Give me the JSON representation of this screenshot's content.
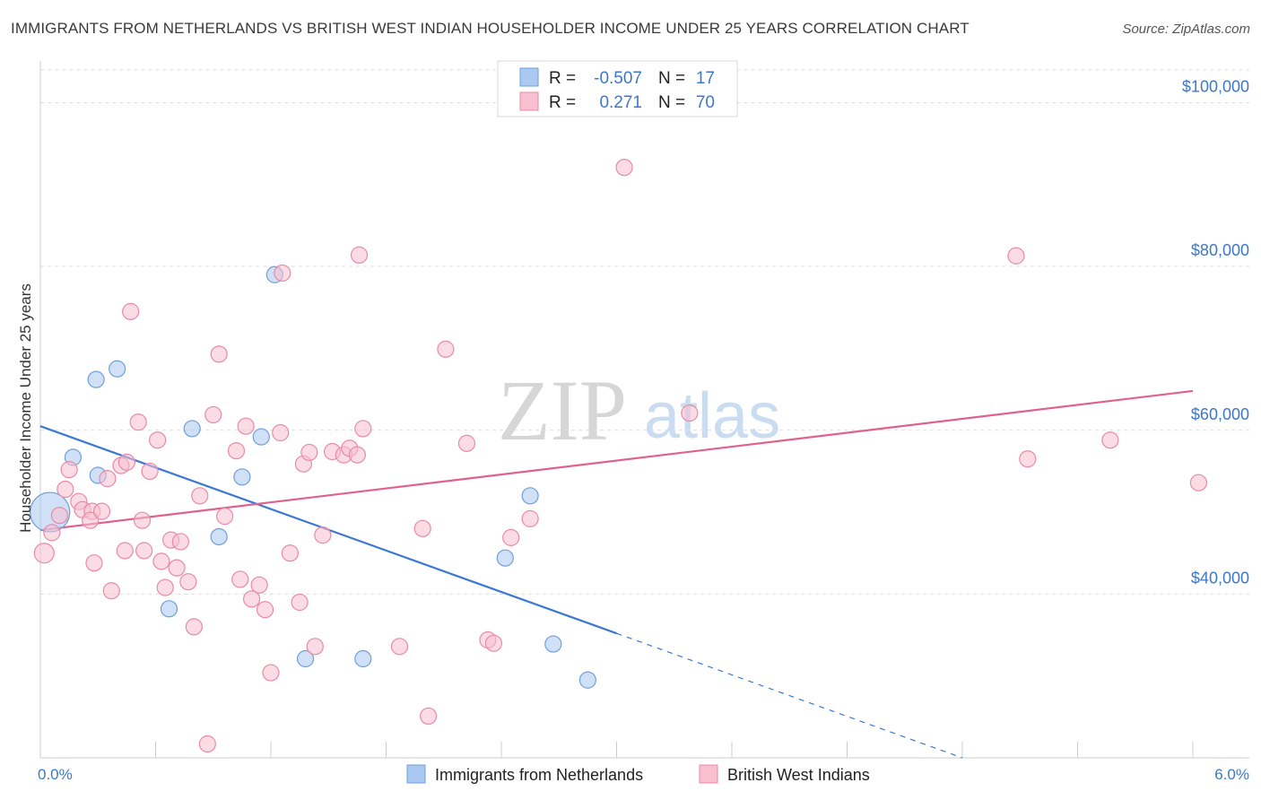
{
  "title": "IMMIGRANTS FROM NETHERLANDS VS BRITISH WEST INDIAN HOUSEHOLDER INCOME UNDER 25 YEARS CORRELATION CHART",
  "source": "Source: ZipAtlas.com",
  "watermark": {
    "zip": "ZIP",
    "atlas": "atlas"
  },
  "legend": {
    "r_label": "R =",
    "n_label": "N =",
    "rows": [
      {
        "r": "-0.507",
        "n": "17"
      },
      {
        "r": "0.271",
        "n": "70"
      }
    ]
  },
  "chart_data": {
    "type": "scatter",
    "title": "IMMIGRANTS FROM NETHERLANDS VS BRITISH WEST INDIAN HOUSEHOLDER INCOME UNDER 25 YEARS CORRELATION CHART",
    "xlabel": "",
    "ylabel": "Householder Income Under 25 years",
    "xlim": [
      0,
      6
    ],
    "ylim": [
      20000,
      104000
    ],
    "x_tick_labels": [
      "0.0%",
      "6.0%"
    ],
    "y_ticks": [
      40000,
      60000,
      80000,
      100000
    ],
    "y_tick_labels": [
      "$40,000",
      "$60,000",
      "$80,000",
      "$100,000"
    ],
    "series": [
      {
        "name": "Immigrants from Netherlands",
        "color": "#aac8f0",
        "stroke": "#6f9fd9",
        "line_color": "#3b78d4",
        "trend": {
          "x0": 0.0,
          "y0": 60500,
          "x1": 3.0,
          "y1": 35200,
          "dash_to_x": 4.8,
          "dash_to_y": 20000
        },
        "points": [
          [
            0.05,
            50000
          ],
          [
            0.17,
            56700
          ],
          [
            0.29,
            66200
          ],
          [
            0.4,
            67500
          ],
          [
            0.3,
            54500
          ],
          [
            0.79,
            60200
          ],
          [
            1.22,
            79000
          ],
          [
            1.15,
            59200
          ],
          [
            1.05,
            54300
          ],
          [
            0.93,
            47000
          ],
          [
            0.67,
            38200
          ],
          [
            1.38,
            32100
          ],
          [
            1.68,
            32100
          ],
          [
            2.42,
            44400
          ],
          [
            2.55,
            52000
          ],
          [
            2.67,
            33900
          ],
          [
            2.85,
            29500
          ]
        ],
        "sizes": [
          22,
          9,
          9,
          9,
          9,
          9,
          9,
          9,
          9,
          9,
          9,
          9,
          9,
          9,
          9,
          9,
          9
        ]
      },
      {
        "name": "British West Indians",
        "color": "#f7bfd0",
        "stroke": "#e88aa6",
        "line_color": "#e0628c",
        "trend": {
          "x0": 0.0,
          "y0": 47800,
          "x1": 6.0,
          "y1": 64800
        },
        "points": [
          [
            0.02,
            45000
          ],
          [
            0.06,
            47500
          ],
          [
            0.1,
            49600
          ],
          [
            0.13,
            52800
          ],
          [
            0.15,
            55200
          ],
          [
            0.2,
            51300
          ],
          [
            0.22,
            50300
          ],
          [
            0.27,
            50100
          ],
          [
            0.26,
            49000
          ],
          [
            0.32,
            50100
          ],
          [
            0.35,
            54100
          ],
          [
            0.28,
            43800
          ],
          [
            0.37,
            40400
          ],
          [
            0.42,
            55700
          ],
          [
            0.44,
            45300
          ],
          [
            0.45,
            56100
          ],
          [
            0.47,
            74500
          ],
          [
            0.51,
            61000
          ],
          [
            0.53,
            49000
          ],
          [
            0.54,
            45300
          ],
          [
            0.57,
            55000
          ],
          [
            0.61,
            58800
          ],
          [
            0.63,
            44000
          ],
          [
            0.65,
            40800
          ],
          [
            0.68,
            46600
          ],
          [
            0.71,
            43200
          ],
          [
            0.73,
            46400
          ],
          [
            0.77,
            41500
          ],
          [
            0.8,
            36000
          ],
          [
            0.83,
            52000
          ],
          [
            0.87,
            21700
          ],
          [
            0.9,
            61900
          ],
          [
            0.93,
            69300
          ],
          [
            0.96,
            49500
          ],
          [
            1.02,
            57500
          ],
          [
            1.04,
            41800
          ],
          [
            1.07,
            60500
          ],
          [
            1.1,
            39400
          ],
          [
            1.14,
            41100
          ],
          [
            1.17,
            38100
          ],
          [
            1.2,
            30400
          ],
          [
            1.25,
            59700
          ],
          [
            1.26,
            79200
          ],
          [
            1.3,
            45000
          ],
          [
            1.35,
            39000
          ],
          [
            1.37,
            55900
          ],
          [
            1.4,
            57300
          ],
          [
            1.43,
            33600
          ],
          [
            1.47,
            47200
          ],
          [
            1.52,
            57400
          ],
          [
            1.58,
            57000
          ],
          [
            1.61,
            57800
          ],
          [
            1.65,
            57000
          ],
          [
            1.66,
            81400
          ],
          [
            1.68,
            60200
          ],
          [
            1.87,
            33600
          ],
          [
            1.99,
            48000
          ],
          [
            2.02,
            25100
          ],
          [
            2.11,
            69900
          ],
          [
            2.22,
            58400
          ],
          [
            2.33,
            34400
          ],
          [
            2.36,
            34000
          ],
          [
            2.45,
            46900
          ],
          [
            2.55,
            49200
          ],
          [
            3.04,
            92100
          ],
          [
            3.38,
            62100
          ],
          [
            5.08,
            81300
          ],
          [
            5.14,
            56500
          ],
          [
            5.57,
            58800
          ],
          [
            6.03,
            53600
          ]
        ],
        "sizes": [
          11,
          9,
          9,
          9,
          9,
          9,
          9,
          9,
          9,
          9,
          9,
          9,
          9,
          9,
          9,
          9,
          9,
          9,
          9,
          9,
          9,
          9,
          9,
          9,
          9,
          9,
          9,
          9,
          9,
          9,
          9,
          9,
          9,
          9,
          9,
          9,
          9,
          9,
          9,
          9,
          9,
          9,
          9,
          9,
          9,
          9,
          9,
          9,
          9,
          9,
          9,
          9,
          9,
          9,
          9,
          9,
          9,
          9,
          9,
          9,
          9,
          9,
          9,
          9,
          9,
          9,
          9,
          9,
          9,
          9
        ]
      }
    ]
  }
}
